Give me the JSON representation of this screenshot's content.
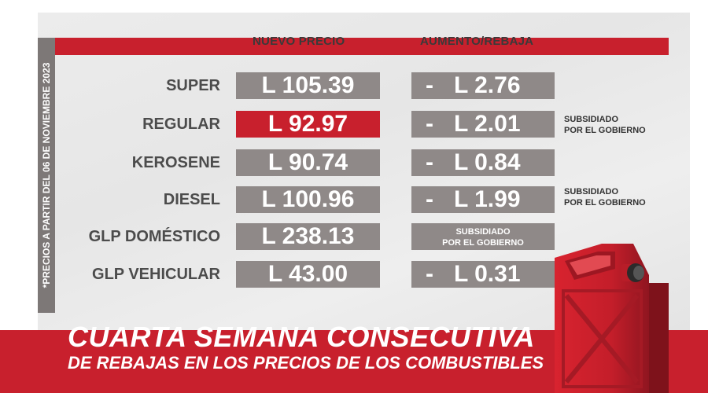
{
  "headers": {
    "price": "NUEVO PRECIO",
    "change": "AUMENTO/REBAJA"
  },
  "side_text": "*PRECIOS A PARTIR DEL  06 DE NOVIEMBRE 2023",
  "rows": [
    {
      "fuel": "SUPER",
      "price": "L 105.39",
      "sign": "-",
      "change": "L 2.76",
      "note": ""
    },
    {
      "fuel": "REGULAR",
      "price": "L 92.97",
      "sign": "-",
      "change": "L 2.01",
      "note_line1": "SUBSIDIADO",
      "note_line2": "POR EL GOBIERNO"
    },
    {
      "fuel": "KEROSENE",
      "price": "L 90.74",
      "sign": "-",
      "change": "L 0.84",
      "note": ""
    },
    {
      "fuel": "DIESEL",
      "price": "L 100.96",
      "sign": "-",
      "change": "L 1.99",
      "note_line1": "SUBSIDIADO",
      "note_line2": "POR EL GOBIERNO"
    },
    {
      "fuel": "GLP DOMÉSTICO",
      "price": "L 238.13",
      "change_note_line1": "SUBSIDIADO",
      "change_note_line2": "POR EL GOBIERNO"
    },
    {
      "fuel": "GLP VEHICULAR",
      "price": "L 43.00",
      "sign": "-",
      "change": "L 0.31",
      "note": ""
    }
  ],
  "highlight_row": "REGULAR",
  "headline": "CUARTA SEMANA CONSECUTIVA",
  "subheadline": "DE REBAJAS EN LOS PRECIOS DE LOS COMBUSTIBLES",
  "colors": {
    "brand_red": "#c8202d",
    "box_gray": "#8f8988",
    "side_strip_gray": "#7d7877",
    "label_text": "#4c4c4c"
  },
  "icons": [
    "fuel-can-icon"
  ]
}
